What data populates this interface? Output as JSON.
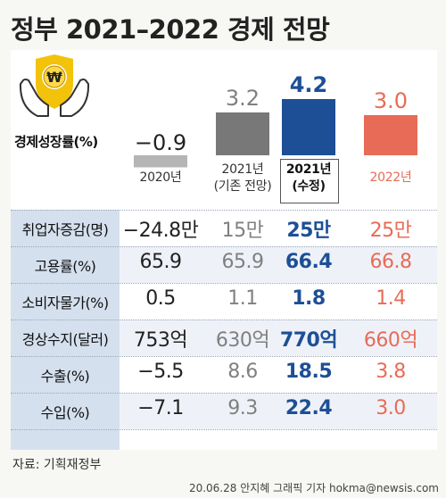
{
  "title": "정부 2021–2022 경제 전망",
  "icon": "won-coin-hands-icon",
  "colors": {
    "label_bg": "#d5e0ee",
    "bar_2020": "#b5b5b5",
    "bar_2021_prev": "#787878",
    "bar_2021_new": "#1d4f96",
    "bar_2022": "#e86b57"
  },
  "chart_data": {
    "type": "bar",
    "title": "정부 2021–2022 경제 전망",
    "ylabel": "경제성장률(%)",
    "categories": [
      "2020년",
      "2021년 (기존 전망)",
      "2021년 (수정)",
      "2022년"
    ],
    "values": [
      -0.9,
      3.2,
      4.2,
      3.0
    ],
    "value_labels": [
      "−0.9",
      "3.2",
      "4.2",
      "3.0"
    ],
    "ylim": [
      -1.5,
      5
    ]
  },
  "table": {
    "columns": [
      {
        "line1": "2020년",
        "line2": ""
      },
      {
        "line1": "2021년",
        "line2": "(기존 전망)"
      },
      {
        "line1": "2021년",
        "line2": "(수정)"
      },
      {
        "line1": "2022년",
        "line2": ""
      }
    ],
    "rows": [
      {
        "label": "취업자증감(명)",
        "values": [
          "−24.8만",
          "15만",
          "25만",
          "25만"
        ]
      },
      {
        "label": "고용률(%)",
        "values": [
          "65.9",
          "65.9",
          "66.4",
          "66.8"
        ]
      },
      {
        "label": "소비자물가(%)",
        "values": [
          "0.5",
          "1.1",
          "1.8",
          "1.4"
        ]
      },
      {
        "label": "경상수지(달러)",
        "values": [
          "753억",
          "630억",
          "770억",
          "660억"
        ]
      },
      {
        "label": "수출(%)",
        "values": [
          "−5.5",
          "8.6",
          "18.5",
          "3.8"
        ]
      },
      {
        "label": "수입(%)",
        "values": [
          "−7.1",
          "9.3",
          "22.4",
          "3.0"
        ]
      }
    ]
  },
  "source": "자료: 기획재정부",
  "credit": "20.06.28 안지혜 그래픽 기자 hokma@newsis.com"
}
